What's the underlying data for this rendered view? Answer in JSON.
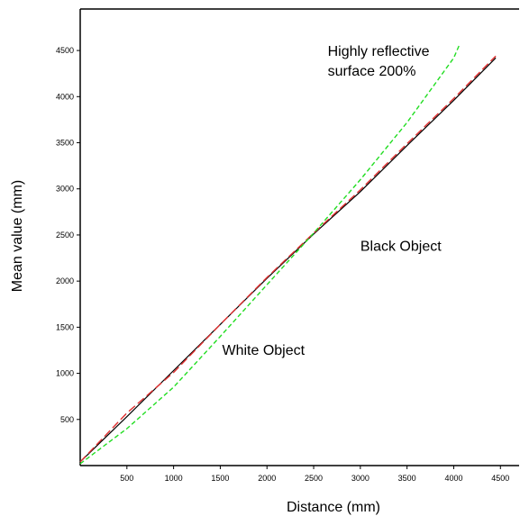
{
  "chart_data": {
    "type": "line",
    "title": "",
    "xlabel": "Distance (mm)",
    "ylabel": "Mean value (mm)",
    "xlim": [
      0,
      4700
    ],
    "ylim": [
      0,
      4950
    ],
    "x_ticks": [
      500,
      1000,
      1500,
      2000,
      2500,
      3000,
      3500,
      4000,
      4500
    ],
    "y_ticks": [
      500,
      1000,
      1500,
      2000,
      2500,
      3000,
      3500,
      4000,
      4500
    ],
    "x_tick_labels": [
      "500",
      "1000",
      "1500",
      "2000",
      "2500",
      "3000",
      "3500",
      "4000",
      "4500"
    ],
    "y_tick_labels": [
      "500",
      "1000",
      "1500",
      "2000",
      "2500",
      "3000",
      "3500",
      "4000",
      "4500"
    ],
    "grid": false,
    "legend": "none",
    "series": [
      {
        "color": "#000000",
        "style": "solid",
        "x": [
          0,
          500,
          1000,
          1500,
          2000,
          2500,
          3000,
          3500,
          4000,
          4450
        ],
        "y": [
          40,
          530,
          1030,
          1530,
          2030,
          2510,
          2970,
          3470,
          3960,
          4420
        ]
      },
      {
        "color": "#e03030",
        "style": "dashed",
        "x": [
          0,
          500,
          1000,
          1500,
          2000,
          2500,
          3000,
          3500,
          4000,
          4450
        ],
        "y": [
          40,
          570,
          1010,
          1530,
          2040,
          2520,
          2990,
          3490,
          3980,
          4440
        ]
      },
      {
        "color": "#22dd22",
        "style": "dashed",
        "x": [
          0,
          500,
          1000,
          1500,
          2000,
          2500,
          3000,
          3500,
          4000,
          4060
        ],
        "y": [
          20,
          400,
          850,
          1400,
          1960,
          2520,
          3100,
          3720,
          4420,
          4560
        ]
      }
    ],
    "annotations": [
      {
        "lines": [
          "Highly reflective",
          "surface 200%"
        ],
        "x": 2650,
        "y": 4440
      },
      {
        "lines": [
          "Black Object"
        ],
        "x": 3000,
        "y": 2330
      },
      {
        "lines": [
          "White Object"
        ],
        "x": 1520,
        "y": 1200
      }
    ]
  }
}
